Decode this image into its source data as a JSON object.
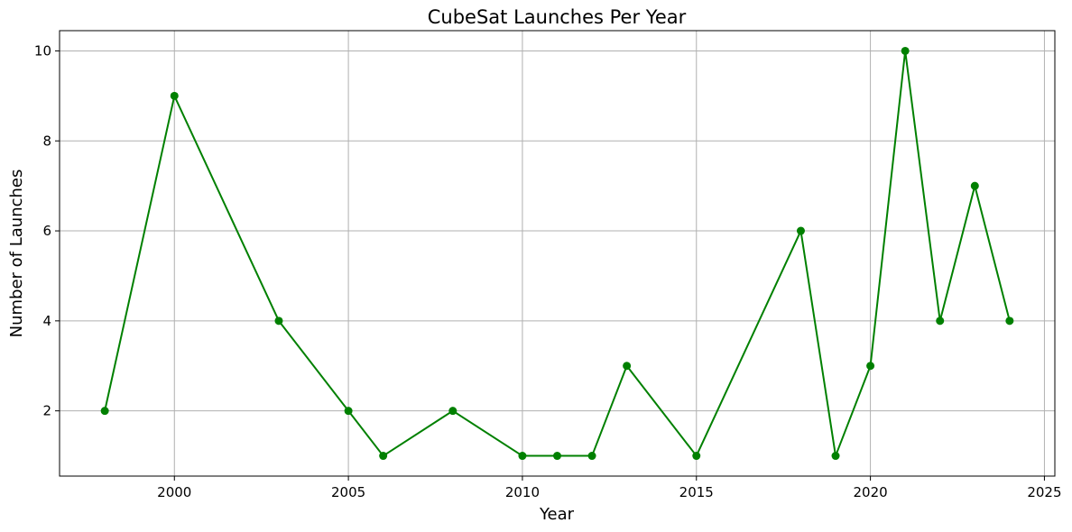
{
  "chart_data": {
    "type": "line",
    "title": "CubeSat Launches Per Year",
    "xlabel": "Year",
    "ylabel": "Number of Launches",
    "x": [
      1998,
      2000,
      2003,
      2005,
      2006,
      2008,
      2010,
      2011,
      2012,
      2013,
      2015,
      2018,
      2019,
      2020,
      2021,
      2022,
      2023,
      2024
    ],
    "series": [
      {
        "values": [
          2,
          9,
          4,
          2,
          1,
          2,
          1,
          1,
          1,
          3,
          1,
          6,
          1,
          3,
          10,
          4,
          7,
          4
        ],
        "color": "#008000",
        "marker": "circle"
      }
    ],
    "xlim": [
      1996.7,
      2025.3
    ],
    "ylim": [
      0.55,
      10.45
    ],
    "xticks": [
      2000,
      2005,
      2010,
      2015,
      2020,
      2025
    ],
    "yticks": [
      2,
      4,
      6,
      8,
      10
    ],
    "grid": true,
    "legend": "none"
  }
}
